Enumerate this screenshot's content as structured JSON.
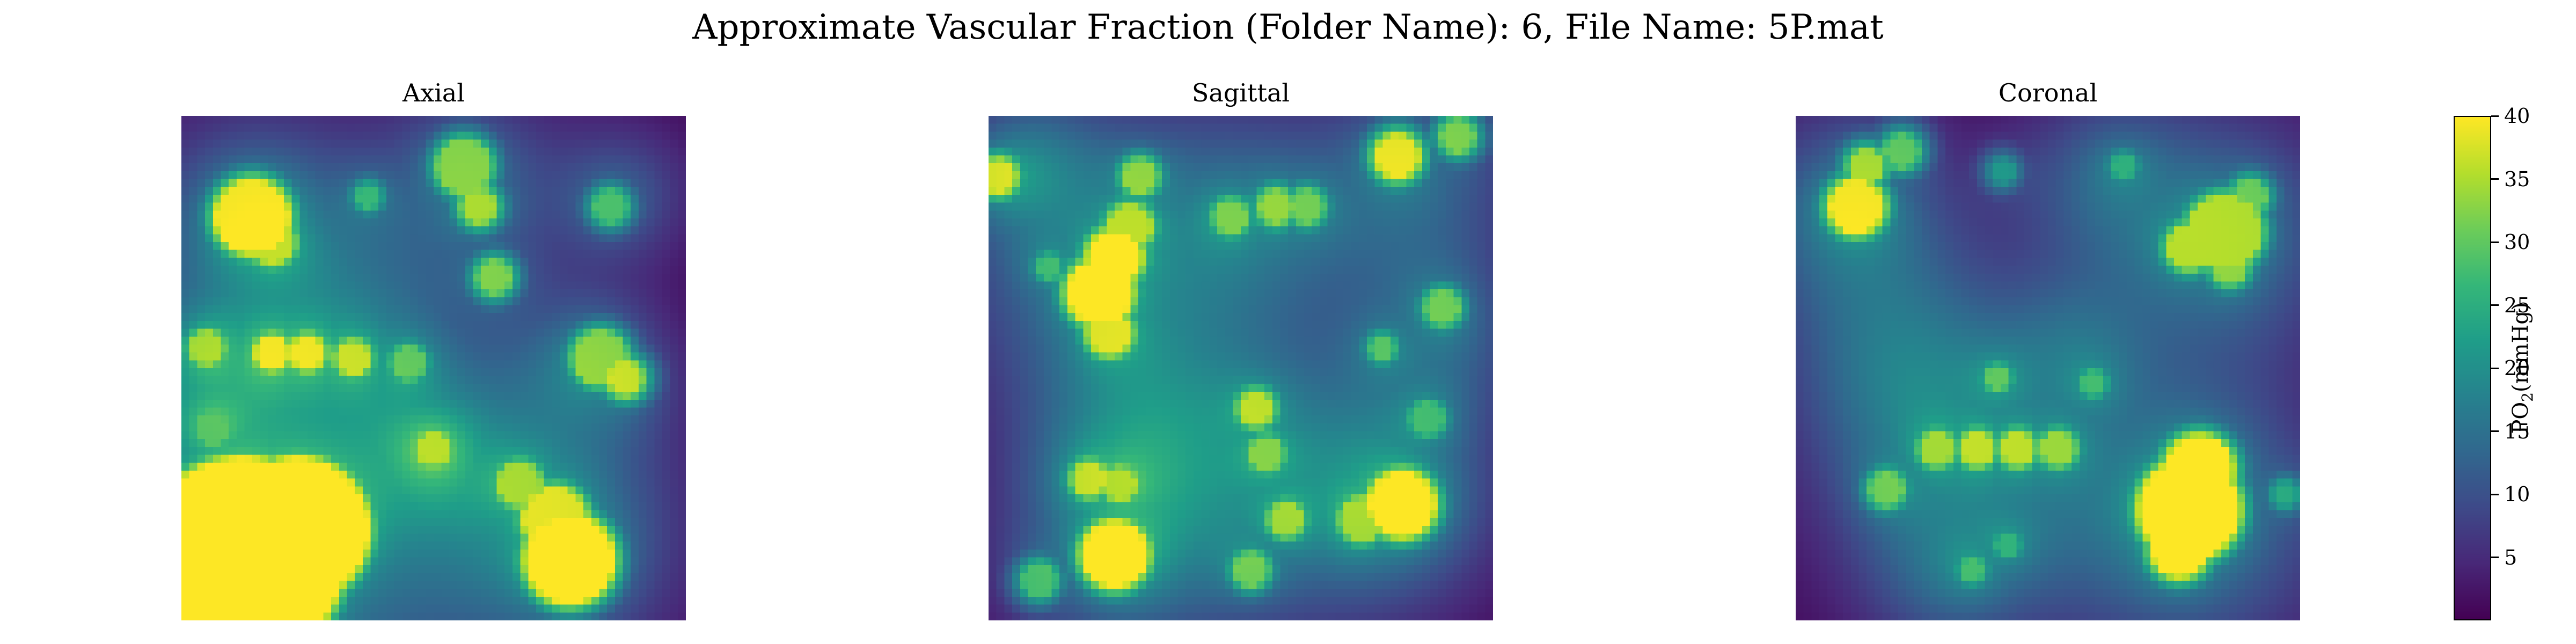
{
  "chart_data": {
    "type": "heatmap",
    "title": "Approximate Vascular Fraction (Folder Name): 6, File Name: 5P.mat",
    "colormap": "viridis",
    "colorbar": {
      "label_main": "PO",
      "label_sub": "2",
      "label_unit": "(mmHg)",
      "min": 0,
      "max": 40,
      "ticks": [
        5,
        10,
        15,
        20,
        25,
        30,
        35,
        40
      ],
      "tick_labels": [
        "5",
        "10",
        "15",
        "20",
        "25",
        "30",
        "35",
        "40"
      ]
    },
    "grid_resolution": 64,
    "panels": [
      {
        "title": "Axial",
        "vessels": [
          {
            "x": 0.12,
            "y": 0.88,
            "r": 0.19,
            "v": 46
          },
          {
            "x": 0.23,
            "y": 0.82,
            "r": 0.13,
            "v": 46
          },
          {
            "x": 0.03,
            "y": 0.97,
            "r": 0.12,
            "v": 46
          },
          {
            "x": 0.77,
            "y": 0.88,
            "r": 0.08,
            "v": 42
          },
          {
            "x": 0.74,
            "y": 0.8,
            "r": 0.06,
            "v": 34
          },
          {
            "x": 0.67,
            "y": 0.73,
            "r": 0.04,
            "v": 30
          },
          {
            "x": 0.14,
            "y": 0.2,
            "r": 0.07,
            "v": 36
          },
          {
            "x": 0.18,
            "y": 0.25,
            "r": 0.04,
            "v": 32
          },
          {
            "x": 0.56,
            "y": 0.1,
            "r": 0.05,
            "v": 30
          },
          {
            "x": 0.59,
            "y": 0.18,
            "r": 0.03,
            "v": 32
          },
          {
            "x": 0.62,
            "y": 0.32,
            "r": 0.03,
            "v": 30
          },
          {
            "x": 0.83,
            "y": 0.48,
            "r": 0.05,
            "v": 30
          },
          {
            "x": 0.88,
            "y": 0.52,
            "r": 0.03,
            "v": 34
          },
          {
            "x": 0.18,
            "y": 0.47,
            "r": 0.03,
            "v": 34
          },
          {
            "x": 0.25,
            "y": 0.47,
            "r": 0.03,
            "v": 34
          },
          {
            "x": 0.34,
            "y": 0.48,
            "r": 0.03,
            "v": 32
          },
          {
            "x": 0.45,
            "y": 0.49,
            "r": 0.03,
            "v": 26
          },
          {
            "x": 0.05,
            "y": 0.46,
            "r": 0.03,
            "v": 30
          },
          {
            "x": 0.06,
            "y": 0.62,
            "r": 0.03,
            "v": 24
          },
          {
            "x": 0.5,
            "y": 0.66,
            "r": 0.03,
            "v": 30
          },
          {
            "x": 0.85,
            "y": 0.18,
            "r": 0.03,
            "v": 26
          },
          {
            "x": 0.37,
            "y": 0.16,
            "r": 0.02,
            "v": 24
          }
        ],
        "haze": [
          {
            "x": 0.15,
            "y": 0.22,
            "r": 0.16,
            "v": 13
          },
          {
            "x": 0.57,
            "y": 0.14,
            "r": 0.14,
            "v": 10
          },
          {
            "x": 0.35,
            "y": 0.5,
            "r": 0.18,
            "v": 11
          },
          {
            "x": 0.8,
            "y": 0.5,
            "r": 0.12,
            "v": 10
          },
          {
            "x": 0.73,
            "y": 0.82,
            "r": 0.18,
            "v": 14
          },
          {
            "x": 0.15,
            "y": 0.88,
            "r": 0.3,
            "v": 16
          },
          {
            "x": 0.05,
            "y": 0.55,
            "r": 0.12,
            "v": 10
          },
          {
            "x": 0.5,
            "y": 0.68,
            "r": 0.1,
            "v": 8
          },
          {
            "x": 0.88,
            "y": 0.15,
            "r": 0.1,
            "v": 8
          }
        ]
      },
      {
        "title": "Sagittal",
        "vessels": [
          {
            "x": 0.22,
            "y": 0.35,
            "r": 0.06,
            "v": 38
          },
          {
            "x": 0.25,
            "y": 0.28,
            "r": 0.05,
            "v": 36
          },
          {
            "x": 0.28,
            "y": 0.22,
            "r": 0.04,
            "v": 32
          },
          {
            "x": 0.24,
            "y": 0.43,
            "r": 0.04,
            "v": 34
          },
          {
            "x": 0.3,
            "y": 0.12,
            "r": 0.03,
            "v": 30
          },
          {
            "x": 0.02,
            "y": 0.12,
            "r": 0.03,
            "v": 34
          },
          {
            "x": 0.82,
            "y": 0.77,
            "r": 0.06,
            "v": 38
          },
          {
            "x": 0.74,
            "y": 0.8,
            "r": 0.04,
            "v": 30
          },
          {
            "x": 0.25,
            "y": 0.87,
            "r": 0.06,
            "v": 38
          },
          {
            "x": 0.81,
            "y": 0.08,
            "r": 0.04,
            "v": 36
          },
          {
            "x": 0.93,
            "y": 0.04,
            "r": 0.03,
            "v": 30
          },
          {
            "x": 0.2,
            "y": 0.72,
            "r": 0.03,
            "v": 32
          },
          {
            "x": 0.26,
            "y": 0.73,
            "r": 0.03,
            "v": 30
          },
          {
            "x": 0.53,
            "y": 0.58,
            "r": 0.03,
            "v": 32
          },
          {
            "x": 0.55,
            "y": 0.67,
            "r": 0.03,
            "v": 28
          },
          {
            "x": 0.59,
            "y": 0.8,
            "r": 0.03,
            "v": 30
          },
          {
            "x": 0.52,
            "y": 0.9,
            "r": 0.03,
            "v": 28
          },
          {
            "x": 0.48,
            "y": 0.2,
            "r": 0.03,
            "v": 28
          },
          {
            "x": 0.57,
            "y": 0.18,
            "r": 0.03,
            "v": 30
          },
          {
            "x": 0.63,
            "y": 0.18,
            "r": 0.03,
            "v": 28
          },
          {
            "x": 0.9,
            "y": 0.38,
            "r": 0.03,
            "v": 28
          },
          {
            "x": 0.78,
            "y": 0.46,
            "r": 0.02,
            "v": 26
          },
          {
            "x": 0.12,
            "y": 0.3,
            "r": 0.02,
            "v": 24
          },
          {
            "x": 0.1,
            "y": 0.92,
            "r": 0.03,
            "v": 26
          },
          {
            "x": 0.87,
            "y": 0.6,
            "r": 0.03,
            "v": 24
          }
        ],
        "haze": [
          {
            "x": 0.22,
            "y": 0.3,
            "r": 0.22,
            "v": 13
          },
          {
            "x": 0.52,
            "y": 0.2,
            "r": 0.16,
            "v": 9
          },
          {
            "x": 0.85,
            "y": 0.15,
            "r": 0.15,
            "v": 11
          },
          {
            "x": 0.55,
            "y": 0.72,
            "r": 0.22,
            "v": 12
          },
          {
            "x": 0.8,
            "y": 0.75,
            "r": 0.15,
            "v": 12
          },
          {
            "x": 0.25,
            "y": 0.85,
            "r": 0.16,
            "v": 12
          },
          {
            "x": 0.08,
            "y": 0.1,
            "r": 0.1,
            "v": 10
          },
          {
            "x": 0.9,
            "y": 0.45,
            "r": 0.12,
            "v": 9
          },
          {
            "x": 0.3,
            "y": 0.62,
            "r": 0.14,
            "v": 8
          }
        ]
      },
      {
        "title": "Coronal",
        "vessels": [
          {
            "x": 0.78,
            "y": 0.78,
            "r": 0.09,
            "v": 44
          },
          {
            "x": 0.8,
            "y": 0.7,
            "r": 0.06,
            "v": 40
          },
          {
            "x": 0.76,
            "y": 0.86,
            "r": 0.05,
            "v": 38
          },
          {
            "x": 0.85,
            "y": 0.23,
            "r": 0.07,
            "v": 32
          },
          {
            "x": 0.78,
            "y": 0.26,
            "r": 0.04,
            "v": 32
          },
          {
            "x": 0.9,
            "y": 0.16,
            "r": 0.03,
            "v": 28
          },
          {
            "x": 0.86,
            "y": 0.3,
            "r": 0.03,
            "v": 30
          },
          {
            "x": 0.12,
            "y": 0.18,
            "r": 0.05,
            "v": 36
          },
          {
            "x": 0.14,
            "y": 0.1,
            "r": 0.03,
            "v": 32
          },
          {
            "x": 0.21,
            "y": 0.07,
            "r": 0.03,
            "v": 28
          },
          {
            "x": 0.28,
            "y": 0.66,
            "r": 0.03,
            "v": 30
          },
          {
            "x": 0.36,
            "y": 0.66,
            "r": 0.03,
            "v": 32
          },
          {
            "x": 0.44,
            "y": 0.66,
            "r": 0.03,
            "v": 32
          },
          {
            "x": 0.52,
            "y": 0.66,
            "r": 0.03,
            "v": 30
          },
          {
            "x": 0.18,
            "y": 0.74,
            "r": 0.03,
            "v": 28
          },
          {
            "x": 0.4,
            "y": 0.52,
            "r": 0.02,
            "v": 26
          },
          {
            "x": 0.59,
            "y": 0.53,
            "r": 0.02,
            "v": 24
          },
          {
            "x": 0.35,
            "y": 0.9,
            "r": 0.02,
            "v": 24
          },
          {
            "x": 0.42,
            "y": 0.85,
            "r": 0.02,
            "v": 22
          },
          {
            "x": 0.41,
            "y": 0.11,
            "r": 0.02,
            "v": 20
          },
          {
            "x": 0.65,
            "y": 0.1,
            "r": 0.02,
            "v": 22
          },
          {
            "x": 0.97,
            "y": 0.75,
            "r": 0.02,
            "v": 22
          }
        ],
        "haze": [
          {
            "x": 0.1,
            "y": 0.2,
            "r": 0.15,
            "v": 13
          },
          {
            "x": 0.83,
            "y": 0.24,
            "r": 0.18,
            "v": 13
          },
          {
            "x": 0.78,
            "y": 0.8,
            "r": 0.2,
            "v": 14
          },
          {
            "x": 0.35,
            "y": 0.66,
            "r": 0.22,
            "v": 12
          },
          {
            "x": 0.2,
            "y": 0.5,
            "r": 0.15,
            "v": 9
          },
          {
            "x": 0.3,
            "y": 0.9,
            "r": 0.12,
            "v": 8
          },
          {
            "x": 0.6,
            "y": 0.12,
            "r": 0.12,
            "v": 8
          },
          {
            "x": 0.55,
            "y": 0.45,
            "r": 0.1,
            "v": 6
          }
        ]
      }
    ]
  }
}
